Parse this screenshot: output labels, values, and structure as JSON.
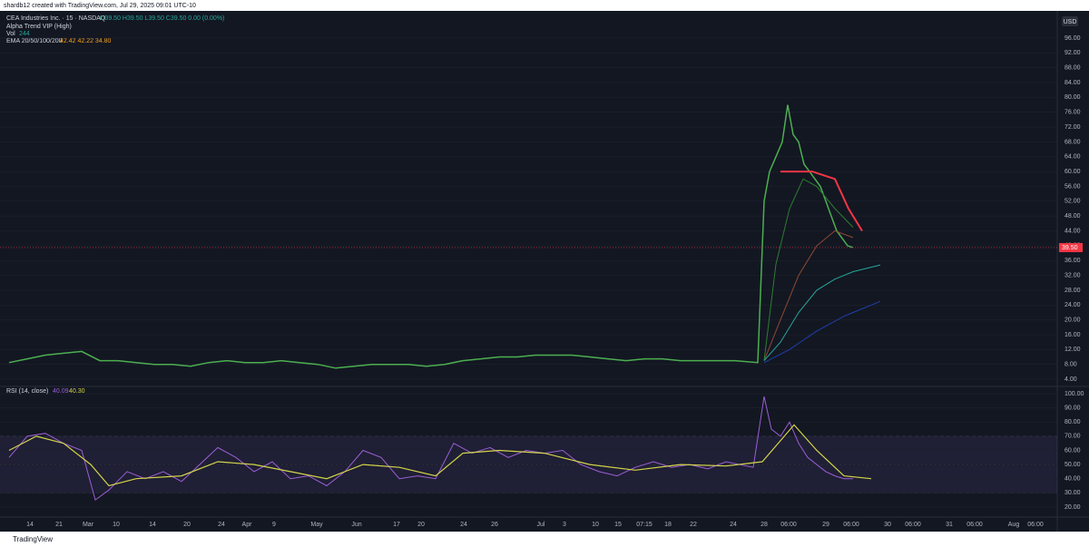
{
  "header": {
    "credit": "shardb12 created with TradingView.com, Jul 29, 2025 09:01 UTC-10",
    "symbol": "CEA Industries Inc. · 15 · NASDAQ",
    "ohlc": "O39.50 H39.50 L39.50 C39.50 0.00 (0.00%)",
    "indicator_1": "Alpha Trend VIP (High)",
    "indicator_2": "Vol",
    "indicator_2_value": "244",
    "indicator_3": "EMA 20/50/100/200",
    "indicator_3_values": "42.42 42.22 34.80",
    "currency": "USD",
    "footer": "TradingView"
  },
  "chart_data": [
    {
      "type": "line",
      "panel": "price",
      "xlim": [
        0,
        1165
      ],
      "ylim": [
        2.3,
        102.6
      ],
      "yticks": [
        {
          "value": 4,
          "label": "4.00"
        },
        {
          "value": 8,
          "label": "8.00"
        },
        {
          "value": 12,
          "label": "12.00"
        },
        {
          "value": 16,
          "label": "16.00"
        },
        {
          "value": 20,
          "label": "20.00"
        },
        {
          "value": 24,
          "label": "24.00"
        },
        {
          "value": 28,
          "label": "28.00"
        },
        {
          "value": 32,
          "label": "32.00"
        },
        {
          "value": 36,
          "label": "36.00"
        },
        {
          "value": 40,
          "label": "40.00"
        },
        {
          "value": 44,
          "label": "44.00"
        },
        {
          "value": 48,
          "label": "48.00"
        },
        {
          "value": 52,
          "label": "52.00"
        },
        {
          "value": 56,
          "label": "56.00"
        },
        {
          "value": 60,
          "label": "60.00"
        },
        {
          "value": 64,
          "label": "64.00"
        },
        {
          "value": 68,
          "label": "68.00"
        },
        {
          "value": 72,
          "label": "72.00"
        },
        {
          "value": 76,
          "label": "76.00"
        },
        {
          "value": 80,
          "label": "80.00"
        },
        {
          "value": 84,
          "label": "84.00"
        },
        {
          "value": 88,
          "label": "88.00"
        },
        {
          "value": 92,
          "label": "92.00"
        },
        {
          "value": 96,
          "label": "96.00"
        }
      ],
      "last_price": {
        "value": 39.5,
        "label": "39.50"
      },
      "series": [
        {
          "color": "#4caf50",
          "width": 1.5,
          "x": [
            10,
            30,
            50,
            70,
            90,
            110,
            130,
            150,
            170,
            190,
            210,
            230,
            250,
            270,
            290,
            310,
            330,
            350,
            370,
            390,
            410,
            430,
            450,
            470,
            490,
            510,
            530,
            550,
            570,
            590,
            610,
            630,
            650,
            670,
            690,
            710,
            730,
            750,
            770,
            790,
            810,
            835,
            842,
            848,
            855,
            862,
            868,
            874,
            880,
            886,
            892,
            898,
            904,
            910,
            916,
            922,
            928,
            934,
            940
          ],
          "values": [
            8.5,
            9.5,
            10.5,
            11,
            11.5,
            9,
            9,
            8.5,
            8,
            8,
            7.5,
            8.5,
            9,
            8.5,
            8.5,
            9,
            8.5,
            8,
            7,
            7.5,
            8,
            8,
            8,
            7.5,
            8,
            9,
            9.5,
            10,
            10,
            10.5,
            10.5,
            10.5,
            10,
            9.5,
            9,
            9.5,
            9.5,
            9,
            9,
            9,
            9,
            8.5,
            52,
            60,
            64,
            68,
            78,
            70,
            68,
            62,
            60,
            58,
            56,
            52,
            48,
            44,
            42,
            40,
            39.5
          ]
        },
        {
          "color": "#f23645",
          "width": 2,
          "x": [
            860,
            880,
            895,
            920,
            935,
            950
          ],
          "values": [
            60,
            60,
            60,
            58,
            50,
            44
          ]
        },
        {
          "color": "#8d4a32",
          "width": 1,
          "x": [
            842,
            860,
            880,
            900,
            920,
            940
          ],
          "values": [
            9,
            20,
            32,
            40,
            44,
            42.2
          ]
        },
        {
          "color": "#2e7d32",
          "width": 1,
          "x": [
            842,
            855,
            870,
            885,
            900,
            920,
            940
          ],
          "values": [
            9,
            35,
            50,
            58,
            56,
            50,
            45
          ]
        },
        {
          "color": "#26a69a",
          "width": 1,
          "x": [
            842,
            860,
            880,
            900,
            920,
            940,
            970
          ],
          "values": [
            9,
            14,
            22,
            28,
            31,
            33,
            34.8
          ]
        },
        {
          "color": "#1e3fa8",
          "width": 1,
          "x": [
            842,
            870,
            900,
            930,
            970
          ],
          "values": [
            8.5,
            12,
            17,
            21,
            25
          ]
        }
      ]
    },
    {
      "type": "line",
      "panel": "rsi",
      "title": "RSI (14, close)",
      "title_values": [
        "40.09",
        "40.30"
      ],
      "xlim": [
        0,
        1165
      ],
      "ylim": [
        14.2,
        104.5
      ],
      "band": [
        30,
        70
      ],
      "midline": 50,
      "yticks": [
        {
          "value": 20,
          "label": "20.00"
        },
        {
          "value": 30,
          "label": "30.00"
        },
        {
          "value": 40,
          "label": "40.00"
        },
        {
          "value": 50,
          "label": "50.00"
        },
        {
          "value": 60,
          "label": "60.00"
        },
        {
          "value": 70,
          "label": "70.00"
        },
        {
          "value": 80,
          "label": "80.00"
        },
        {
          "value": 90,
          "label": "90.00"
        },
        {
          "value": 100,
          "label": "100.00"
        }
      ],
      "xticks": [
        {
          "value": 33,
          "label": "14"
        },
        {
          "value": 65,
          "label": "21"
        },
        {
          "value": 97,
          "label": "Mar"
        },
        {
          "value": 128,
          "label": "10"
        },
        {
          "value": 168,
          "label": "14"
        },
        {
          "value": 206,
          "label": "20"
        },
        {
          "value": 244,
          "label": "24"
        },
        {
          "value": 272,
          "label": "Apr"
        },
        {
          "value": 302,
          "label": "9"
        },
        {
          "value": 349,
          "label": "May"
        },
        {
          "value": 393,
          "label": "Jun"
        },
        {
          "value": 437,
          "label": "17"
        },
        {
          "value": 464,
          "label": "20"
        },
        {
          "value": 511,
          "label": "24"
        },
        {
          "value": 545,
          "label": "26"
        },
        {
          "value": 596,
          "label": "Jul"
        },
        {
          "value": 622,
          "label": "3"
        },
        {
          "value": 656,
          "label": "10"
        },
        {
          "value": 681,
          "label": "15"
        },
        {
          "value": 710,
          "label": "07:15"
        },
        {
          "value": 736,
          "label": "18"
        },
        {
          "value": 764,
          "label": "22"
        },
        {
          "value": 808,
          "label": "24"
        },
        {
          "value": 842,
          "label": "28"
        },
        {
          "value": 869,
          "label": "06:00"
        },
        {
          "value": 910,
          "label": "29"
        },
        {
          "value": 938,
          "label": "06:00"
        },
        {
          "value": 978,
          "label": "30"
        },
        {
          "value": 1006,
          "label": "06:00"
        },
        {
          "value": 1046,
          "label": "31"
        },
        {
          "value": 1074,
          "label": "06:00"
        },
        {
          "value": 1117,
          "label": "Aug"
        },
        {
          "value": 1141,
          "label": "06:00"
        }
      ],
      "series": [
        {
          "color": "#9c5fd6",
          "width": 1,
          "x": [
            10,
            30,
            50,
            70,
            90,
            105,
            120,
            140,
            160,
            180,
            200,
            220,
            240,
            260,
            280,
            300,
            320,
            340,
            360,
            380,
            400,
            420,
            440,
            460,
            480,
            500,
            520,
            540,
            560,
            580,
            600,
            620,
            640,
            660,
            680,
            700,
            720,
            740,
            760,
            780,
            800,
            830,
            842,
            850,
            860,
            870,
            880,
            890,
            900,
            910,
            920,
            930,
            940
          ],
          "values": [
            55,
            70,
            72,
            65,
            60,
            25,
            32,
            45,
            40,
            45,
            38,
            50,
            62,
            55,
            45,
            52,
            40,
            42,
            35,
            45,
            60,
            55,
            40,
            42,
            40,
            65,
            58,
            62,
            55,
            60,
            58,
            60,
            50,
            45,
            42,
            48,
            52,
            48,
            50,
            47,
            52,
            48,
            98,
            75,
            70,
            80,
            65,
            55,
            50,
            45,
            42,
            40,
            40
          ]
        },
        {
          "color": "#d4d44a",
          "width": 1.2,
          "x": [
            10,
            40,
            70,
            100,
            120,
            150,
            200,
            240,
            280,
            320,
            360,
            400,
            440,
            480,
            510,
            550,
            600,
            650,
            700,
            750,
            800,
            840,
            875,
            900,
            930,
            960
          ],
          "values": [
            60,
            70,
            65,
            50,
            35,
            40,
            42,
            52,
            50,
            45,
            40,
            50,
            48,
            42,
            58,
            60,
            58,
            50,
            46,
            50,
            49,
            52,
            78,
            60,
            42,
            40
          ]
        }
      ]
    }
  ]
}
